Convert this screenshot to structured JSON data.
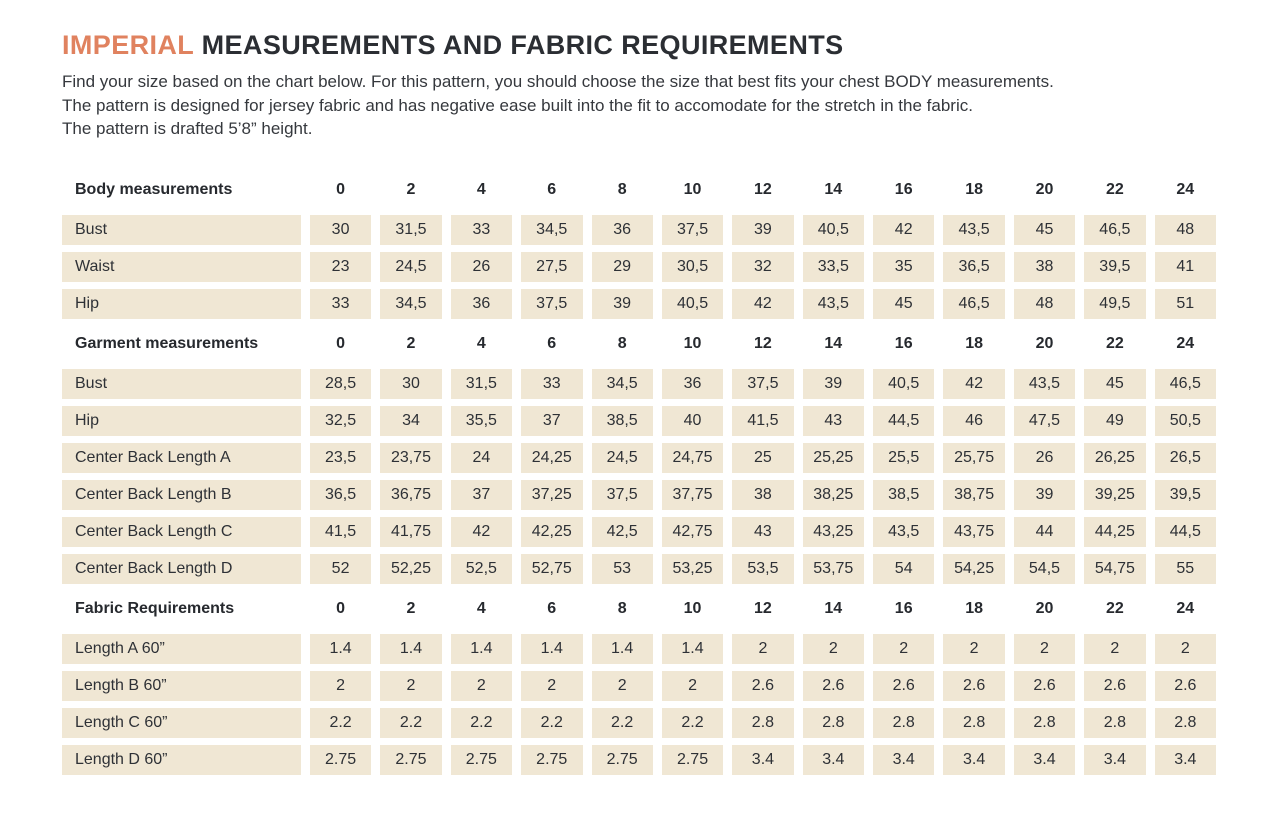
{
  "header": {
    "title_highlight": "IMPERIAL",
    "title_rest": " MEASUREMENTS AND FABRIC REQUIREMENTS",
    "intro_lines": [
      "Find your size based on the chart below. For this pattern, you should choose the size that best fits your chest BODY measurements.",
      "The pattern is designed for jersey fabric and has negative ease built into the fit to accomodate for the stretch in the fabric.",
      "The pattern is drafted 5’8” height."
    ]
  },
  "colors": {
    "accent_orange": "#e0825f",
    "cell_background": "#f0e7d4",
    "text": "#2e3136"
  },
  "table": {
    "sizes": [
      "0",
      "2",
      "4",
      "6",
      "8",
      "10",
      "12",
      "14",
      "16",
      "18",
      "20",
      "22",
      "24"
    ],
    "sections": [
      {
        "label": "Body measurements",
        "rows": [
          {
            "label": "Bust",
            "values": [
              "30",
              "31,5",
              "33",
              "34,5",
              "36",
              "37,5",
              "39",
              "40,5",
              "42",
              "43,5",
              "45",
              "46,5",
              "48"
            ]
          },
          {
            "label": "Waist",
            "values": [
              "23",
              "24,5",
              "26",
              "27,5",
              "29",
              "30,5",
              "32",
              "33,5",
              "35",
              "36,5",
              "38",
              "39,5",
              "41"
            ]
          },
          {
            "label": "Hip",
            "values": [
              "33",
              "34,5",
              "36",
              "37,5",
              "39",
              "40,5",
              "42",
              "43,5",
              "45",
              "46,5",
              "48",
              "49,5",
              "51"
            ]
          }
        ]
      },
      {
        "label": "Garment measurements",
        "rows": [
          {
            "label": "Bust",
            "values": [
              "28,5",
              "30",
              "31,5",
              "33",
              "34,5",
              "36",
              "37,5",
              "39",
              "40,5",
              "42",
              "43,5",
              "45",
              "46,5"
            ]
          },
          {
            "label": "Hip",
            "values": [
              "32,5",
              "34",
              "35,5",
              "37",
              "38,5",
              "40",
              "41,5",
              "43",
              "44,5",
              "46",
              "47,5",
              "49",
              "50,5"
            ]
          },
          {
            "label": "Center Back Length A",
            "values": [
              "23,5",
              "23,75",
              "24",
              "24,25",
              "24,5",
              "24,75",
              "25",
              "25,25",
              "25,5",
              "25,75",
              "26",
              "26,25",
              "26,5"
            ]
          },
          {
            "label": "Center Back Length B",
            "values": [
              "36,5",
              "36,75",
              "37",
              "37,25",
              "37,5",
              "37,75",
              "38",
              "38,25",
              "38,5",
              "38,75",
              "39",
              "39,25",
              "39,5"
            ]
          },
          {
            "label": "Center Back Length C",
            "values": [
              "41,5",
              "41,75",
              "42",
              "42,25",
              "42,5",
              "42,75",
              "43",
              "43,25",
              "43,5",
              "43,75",
              "44",
              "44,25",
              "44,5"
            ]
          },
          {
            "label": "Center Back Length D",
            "values": [
              "52",
              "52,25",
              "52,5",
              "52,75",
              "53",
              "53,25",
              "53,5",
              "53,75",
              "54",
              "54,25",
              "54,5",
              "54,75",
              "55"
            ]
          }
        ]
      },
      {
        "label": "Fabric Requirements",
        "rows": [
          {
            "label": "Length A 60”",
            "values": [
              "1.4",
              "1.4",
              "1.4",
              "1.4",
              "1.4",
              "1.4",
              "2",
              "2",
              "2",
              "2",
              "2",
              "2",
              "2"
            ]
          },
          {
            "label": "Length B 60”",
            "values": [
              "2",
              "2",
              "2",
              "2",
              "2",
              "2",
              "2.6",
              "2.6",
              "2.6",
              "2.6",
              "2.6",
              "2.6",
              "2.6"
            ]
          },
          {
            "label": "Length C 60”",
            "values": [
              "2.2",
              "2.2",
              "2.2",
              "2.2",
              "2.2",
              "2.2",
              "2.8",
              "2.8",
              "2.8",
              "2.8",
              "2.8",
              "2.8",
              "2.8"
            ]
          },
          {
            "label": "Length D 60”",
            "values": [
              "2.75",
              "2.75",
              "2.75",
              "2.75",
              "2.75",
              "2.75",
              "3.4",
              "3.4",
              "3.4",
              "3.4",
              "3.4",
              "3.4",
              "3.4"
            ]
          }
        ]
      }
    ]
  }
}
